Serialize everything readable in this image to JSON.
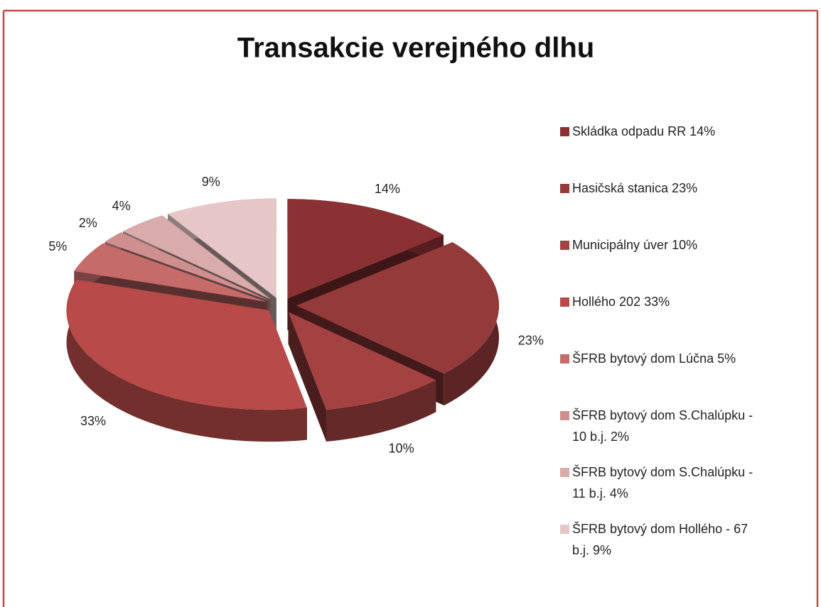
{
  "chart_data": {
    "type": "pie3d",
    "title": "Transakcie verejného dlhu",
    "categories": [
      "Skládka odpadu RR 14%",
      "Hasičská stanica 23%",
      "Municipálny úver 10%",
      "Hollého 202 33%",
      "ŠFRB bytový dom Lúčna 5%",
      "ŠFRB bytový dom S.Chalúpku - 10 b.j. 2%",
      "ŠFRB bytový dom S.Chalúpku - 11 b.j. 4%",
      "ŠFRB bytový dom Hollého - 67 b.j. 9%"
    ],
    "values": [
      14,
      23,
      10,
      33,
      5,
      2,
      4,
      9
    ],
    "value_labels": [
      "14%",
      "23%",
      "10%",
      "33%",
      "5%",
      "2%",
      "4%",
      "9%"
    ],
    "colors": [
      "#8b3033",
      "#953a3a",
      "#a44242",
      "#b84b4a",
      "#c56b6a",
      "#cf8f8f",
      "#d9abab",
      "#e6c6c6"
    ],
    "legend": "right"
  }
}
